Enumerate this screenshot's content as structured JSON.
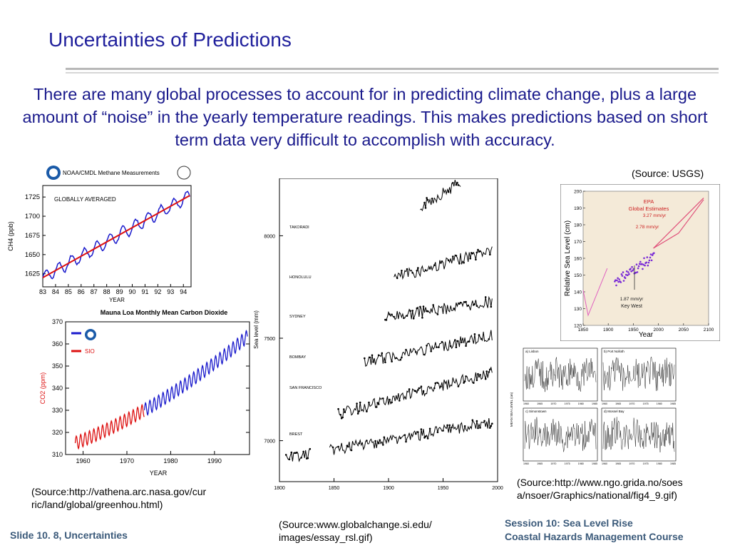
{
  "slide": {
    "title": "Uncertainties of Predictions",
    "intro": "There are many global processes to account for in predicting climate change, plus a large amount of “noise” in the yearly temperature readings. This makes predictions based on short term data very difficult to accomplish with accuracy.",
    "footer_left": "Slide 10. 8, Uncertainties",
    "footer_right_1": "Session 10: Sea Level Rise",
    "footer_right_2": "Coastal Hazards Management Course"
  },
  "sources": {
    "usgs": "(Source: USGS)",
    "nasa_1": "(Source:http://vathena.arc.nasa.gov/cur",
    "nasa_2": "ric/land/global/greenhou.html)",
    "si_1": "(Source:www.globalchange.si.edu/",
    "si_2": "images/essay_rsl.gif)",
    "grida_1": "(Source:http://www.ngo.grida.no/soes",
    "grida_2": "a/nsoer/Graphics/national/fig4_9.gif)"
  },
  "chart_data": [
    {
      "type": "line",
      "title": "NOAA/CMDL Methane Measurements",
      "annotation": "GLOBALLY AVERAGED",
      "xlabel": "YEAR",
      "ylabel": "CH4 (ppb)",
      "x_ticks": [
        "83",
        "84",
        "85",
        "86",
        "87",
        "88",
        "89",
        "90",
        "91",
        "92",
        "93",
        "94"
      ],
      "y_ticks": [
        1625,
        1650,
        1675,
        1700,
        1725
      ],
      "xlim": [
        83,
        94.6
      ],
      "ylim": [
        1608,
        1740
      ],
      "trend": [
        [
          83,
          1620
        ],
        [
          94.5,
          1727
        ]
      ],
      "colors": {
        "data": "#1a1acc",
        "trend": "#dd1111"
      }
    },
    {
      "type": "line",
      "title": "Mauna Loa Monthly Mean Carbon Dioxide",
      "xlabel": "YEAR",
      "ylabel": "CO2 (ppm)",
      "legend": [
        "SIO"
      ],
      "x_ticks": [
        1960,
        1970,
        1980,
        1990
      ],
      "y_ticks": [
        310,
        320,
        330,
        340,
        350,
        360,
        370
      ],
      "xlim": [
        1956,
        1998
      ],
      "ylim": [
        310,
        370
      ],
      "colors": {
        "noaa": "#1a1acc",
        "sio": "#dd1111"
      }
    },
    {
      "type": "line",
      "ylabel": "Sea level (mm)",
      "y_ticks": [
        7000,
        7500,
        8000
      ],
      "x_ticks": [
        1800,
        1850,
        1900,
        1950,
        2000
      ],
      "series": [
        "TAKORADI",
        "HONOLULU",
        "SYDNEY",
        "BOMBAY",
        "SAN FRANCISCO",
        "BREST"
      ]
    },
    {
      "type": "line",
      "ylabel": "Relative Sea Level (cm)",
      "xlabel": "Year",
      "x_ticks": [
        1850,
        1900,
        1950,
        2000,
        2050,
        2100
      ],
      "y_ticks": [
        120,
        130,
        140,
        150,
        160,
        170,
        180,
        190,
        200
      ],
      "xlim": [
        1850,
        2100
      ],
      "ylim": [
        120,
        200
      ],
      "annotations": [
        "EPA",
        "Global Estimates",
        "3.27 mm/yr",
        "2.78 mm/yr",
        "1.87 mm/yr",
        "Key West"
      ],
      "colors": {
        "background": "#f4ead8",
        "data": "#7a2bd6",
        "projection": "#e0507a"
      }
    },
    {
      "type": "line",
      "ylabel": "MEAN SEA LEVEL (cm)",
      "panels": [
        "a) Lisbon",
        "b) Port Nolloth",
        "c) Simonstown",
        "d) Mossel Bay"
      ],
      "x_ticks": [
        "1960",
        "1965",
        "1970",
        "1975",
        "1980",
        "1985"
      ]
    }
  ]
}
